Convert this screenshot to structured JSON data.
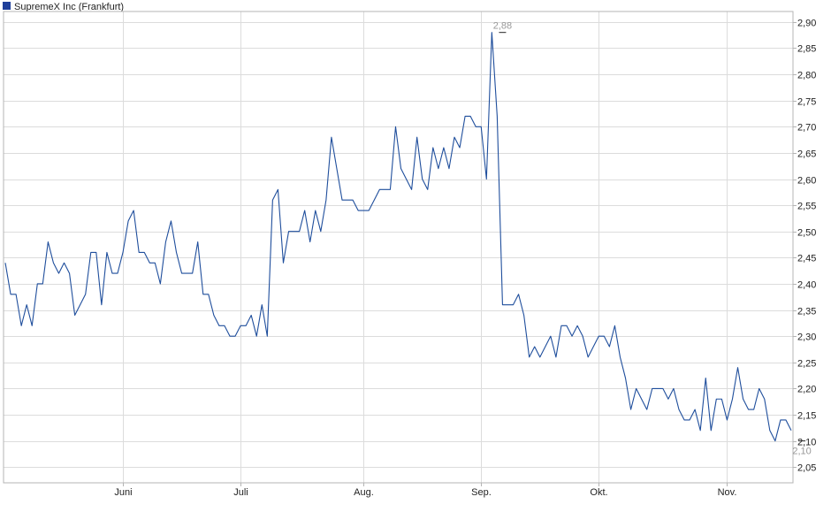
{
  "legend": {
    "label": "SupremeX Inc (Frankfurt)",
    "color": "#1f3f9a"
  },
  "colors": {
    "line": "#1f4e9c",
    "grid": "#dcdcdc",
    "frame": "#b4b4b4",
    "annotation": "#999999"
  },
  "chart_data": {
    "type": "line",
    "title": "",
    "xlabel": "",
    "ylabel": "",
    "ylim": [
      2.02,
      2.92
    ],
    "y_ticks": [
      "2,05",
      "2,10",
      "2,15",
      "2,20",
      "2,25",
      "2,30",
      "2,35",
      "2,40",
      "2,45",
      "2,50",
      "2,55",
      "2,60",
      "2,65",
      "2,70",
      "2,75",
      "2,80",
      "2,85",
      "2,90"
    ],
    "x_ticks": [
      "Juni",
      "Juli",
      "Aug.",
      "Sep.",
      "Okt.",
      "Nov."
    ],
    "x_tick_index": [
      22,
      44,
      67,
      89,
      111,
      135
    ],
    "series": [
      {
        "name": "SupremeX Inc (Frankfurt)",
        "values": [
          2.44,
          2.38,
          2.38,
          2.32,
          2.36,
          2.32,
          2.4,
          2.4,
          2.48,
          2.44,
          2.42,
          2.44,
          2.42,
          2.34,
          2.36,
          2.38,
          2.46,
          2.46,
          2.36,
          2.46,
          2.42,
          2.42,
          2.46,
          2.52,
          2.54,
          2.46,
          2.46,
          2.44,
          2.44,
          2.4,
          2.48,
          2.52,
          2.46,
          2.42,
          2.42,
          2.42,
          2.48,
          2.38,
          2.38,
          2.34,
          2.32,
          2.32,
          2.3,
          2.3,
          2.32,
          2.32,
          2.34,
          2.3,
          2.36,
          2.3,
          2.56,
          2.58,
          2.44,
          2.5,
          2.5,
          2.5,
          2.54,
          2.48,
          2.54,
          2.5,
          2.56,
          2.68,
          2.62,
          2.56,
          2.56,
          2.56,
          2.54,
          2.54,
          2.54,
          2.56,
          2.58,
          2.58,
          2.58,
          2.7,
          2.62,
          2.6,
          2.58,
          2.68,
          2.6,
          2.58,
          2.66,
          2.62,
          2.66,
          2.62,
          2.68,
          2.66,
          2.72,
          2.72,
          2.7,
          2.7,
          2.6,
          2.88,
          2.72,
          2.36,
          2.36,
          2.36,
          2.38,
          2.34,
          2.26,
          2.28,
          2.26,
          2.28,
          2.3,
          2.26,
          2.32,
          2.32,
          2.3,
          2.32,
          2.3,
          2.26,
          2.28,
          2.3,
          2.3,
          2.28,
          2.32,
          2.26,
          2.22,
          2.16,
          2.2,
          2.18,
          2.16,
          2.2,
          2.2,
          2.2,
          2.18,
          2.2,
          2.16,
          2.14,
          2.14,
          2.16,
          2.12,
          2.22,
          2.12,
          2.18,
          2.18,
          2.14,
          2.18,
          2.24,
          2.18,
          2.16,
          2.16,
          2.2,
          2.18,
          2.12,
          2.1,
          2.14,
          2.14,
          2.12
        ]
      }
    ],
    "annotations": [
      {
        "label": "2,88",
        "value": 2.88,
        "index": 93
      },
      {
        "label": "2,10",
        "value": 2.1,
        "index": 149
      }
    ],
    "grid": true,
    "legend_position": "top-left"
  }
}
